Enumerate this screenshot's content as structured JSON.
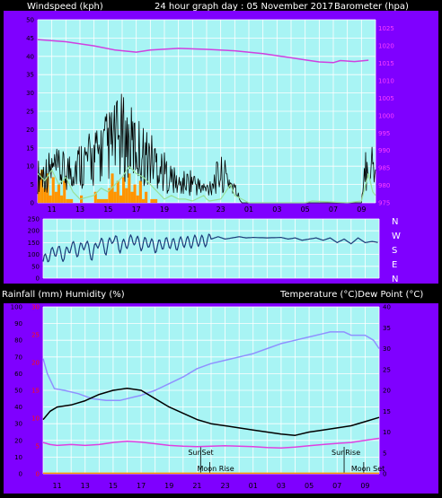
{
  "header": {
    "left": "Windspeed (kph)",
    "center": "24 hour graph day : 05 November 2017",
    "right": "Barometer (hpa)"
  },
  "middle_header": {
    "left": "Rainfall (mm)  Humidity (%)",
    "right": "Temperature (°C)Dew Point (°C)"
  },
  "colors": {
    "frame": "#7f00ff",
    "plot_bg": "#a8f4f4",
    "grid": "#ffffff",
    "axis_line": "#000000",
    "wind_avg": "#000000",
    "wind_gust": "#98e09a",
    "rain_bar": "#ff9400",
    "barometer": "#d040e0",
    "direction": "#1a3a78",
    "temperature": "#000000",
    "humidity": "#9090ff",
    "dewpoint": "#e040e0",
    "rain_cum": "#ff9900"
  },
  "chart_data": [
    {
      "id": "wind",
      "type": "line",
      "title": "24 hour graph day : 05 November 2017",
      "ylabel_left": "Windspeed (kph)",
      "ylabel_right": "Barometer (hpa)",
      "x_tick_labels": [
        "11",
        "13",
        "15",
        "17",
        "19",
        "21",
        "23",
        "01",
        "03",
        "05",
        "07",
        "09"
      ],
      "y_left_ticks": [
        "0",
        "5",
        "10",
        "15",
        "20",
        "25",
        "30",
        "35",
        "40",
        "45",
        "50"
      ],
      "y_left_range": [
        0,
        50
      ],
      "y_right_ticks": [
        "975",
        "980",
        "985",
        "990",
        "995",
        "1000",
        "1005",
        "1010",
        "1015",
        "1020",
        "1025"
      ],
      "y_right_range": [
        975,
        1027.5
      ],
      "grid": true,
      "series": [
        {
          "key": "barometer",
          "axis": "right",
          "points": [
            [
              0,
              1021.8
            ],
            [
              2,
              1021.2
            ],
            [
              4,
              1020.0
            ],
            [
              5.5,
              1018.8
            ],
            [
              7,
              1018.2
            ],
            [
              8,
              1018.8
            ],
            [
              10,
              1019.3
            ],
            [
              12,
              1019.0
            ],
            [
              14,
              1018.6
            ],
            [
              16,
              1017.8
            ],
            [
              18,
              1016.6
            ],
            [
              19,
              1016.0
            ],
            [
              20,
              1015.4
            ],
            [
              21,
              1015.2
            ],
            [
              21.5,
              1015.8
            ],
            [
              22.5,
              1015.5
            ],
            [
              23.5,
              1015.9
            ]
          ]
        },
        {
          "key": "wind_gust",
          "axis": "left",
          "points": [
            [
              0,
              8
            ],
            [
              0.5,
              6
            ],
            [
              1,
              9
            ],
            [
              1.5,
              5
            ],
            [
              2,
              7
            ],
            [
              2.5,
              3
            ],
            [
              3,
              1
            ],
            [
              4,
              2
            ],
            [
              4.5,
              4
            ],
            [
              5,
              3
            ],
            [
              5.5,
              5
            ],
            [
              6,
              7
            ],
            [
              6.5,
              10
            ],
            [
              7,
              8
            ],
            [
              7.5,
              7
            ],
            [
              8,
              5
            ],
            [
              8.5,
              3
            ],
            [
              9,
              1
            ],
            [
              9.5,
              2
            ],
            [
              10,
              1
            ],
            [
              10.5,
              1
            ],
            [
              11,
              0.5
            ],
            [
              11.8,
              2
            ],
            [
              12,
              1
            ],
            [
              12.2,
              0.5
            ],
            [
              13,
              1
            ],
            [
              13.7,
              5
            ],
            [
              14,
              2
            ],
            [
              14.5,
              1
            ],
            [
              15,
              0
            ],
            [
              19,
              0
            ],
            [
              19.5,
              0.5
            ],
            [
              22,
              0
            ],
            [
              23,
              0.5
            ],
            [
              23.5,
              8
            ],
            [
              23.8,
              3
            ],
            [
              24,
              2
            ]
          ]
        },
        {
          "key": "rain_bar",
          "axis": "left",
          "points": [
            [
              0,
              6
            ],
            [
              0.2,
              9
            ],
            [
              0.4,
              4
            ],
            [
              0.6,
              8
            ],
            [
              0.8,
              2
            ],
            [
              1,
              7
            ],
            [
              1.2,
              3
            ],
            [
              1.4,
              5
            ],
            [
              1.6,
              2
            ],
            [
              1.8,
              6
            ],
            [
              2,
              1
            ],
            [
              2.5,
              0
            ],
            [
              3,
              2
            ],
            [
              3.2,
              0
            ],
            [
              4,
              3
            ],
            [
              4.2,
              1
            ],
            [
              5,
              4
            ],
            [
              5.2,
              8
            ],
            [
              5.4,
              3
            ],
            [
              5.6,
              6
            ],
            [
              5.8,
              2
            ],
            [
              6,
              7
            ],
            [
              6.2,
              4
            ],
            [
              6.4,
              8
            ],
            [
              6.6,
              3
            ],
            [
              6.8,
              5
            ],
            [
              7,
              2
            ],
            [
              7.2,
              6
            ],
            [
              7.4,
              1
            ],
            [
              7.6,
              3
            ],
            [
              7.8,
              0
            ],
            [
              8,
              1
            ],
            [
              8.5,
              0
            ],
            [
              24,
              0
            ]
          ]
        }
      ]
    },
    {
      "id": "direction",
      "type": "line",
      "y_left_ticks": [
        "0",
        "50",
        "100",
        "150",
        "200",
        "250"
      ],
      "y_left_range": [
        0,
        250
      ],
      "y_right_labels": [
        "N",
        "W",
        "S",
        "E",
        "N"
      ],
      "grid": true,
      "series": [
        {
          "key": "direction",
          "axis": "left",
          "points": [
            [
              0,
              70
            ],
            [
              0.5,
              100
            ],
            [
              1,
              120
            ],
            [
              1.5,
              90
            ],
            [
              2,
              140
            ],
            [
              2.5,
              110
            ],
            [
              3,
              150
            ],
            [
              3.5,
              95
            ],
            [
              4,
              160
            ],
            [
              4.5,
              120
            ],
            [
              5,
              175
            ],
            [
              5.5,
              130
            ],
            [
              6,
              150
            ],
            [
              6.5,
              165
            ],
            [
              7,
              140
            ],
            [
              7.5,
              155
            ],
            [
              8,
              130
            ],
            [
              8.5,
              145
            ],
            [
              9,
              150
            ],
            [
              9.5,
              140
            ],
            [
              10,
              155
            ],
            [
              10.5,
              150
            ],
            [
              11,
              160
            ],
            [
              11.5,
              155
            ],
            [
              12,
              165
            ],
            [
              12.5,
              175
            ],
            [
              13,
              165
            ],
            [
              13.5,
              170
            ],
            [
              14,
              175
            ],
            [
              14.5,
              170
            ],
            [
              15,
              172
            ],
            [
              16,
              170
            ],
            [
              17,
              172
            ],
            [
              17.5,
              165
            ],
            [
              18,
              170
            ],
            [
              18.5,
              160
            ],
            [
              19,
              165
            ],
            [
              19.5,
              170
            ],
            [
              20,
              160
            ],
            [
              20.5,
              170
            ],
            [
              21,
              150
            ],
            [
              21.5,
              165
            ],
            [
              22,
              145
            ],
            [
              22.5,
              170
            ],
            [
              23,
              150
            ],
            [
              23.5,
              155
            ],
            [
              24,
              150
            ]
          ]
        }
      ]
    },
    {
      "id": "temperature",
      "type": "line",
      "ylabel_left": "Rainfall (mm)  Humidity (%)",
      "ylabel_right": "Temperature (°C)Dew Point (°C)",
      "x_tick_labels": [
        "11",
        "13",
        "15",
        "17",
        "19",
        "21",
        "23",
        "01",
        "03",
        "05",
        "07",
        "09"
      ],
      "y_left_ticks": [
        "0",
        "10",
        "20",
        "30",
        "40",
        "50",
        "60",
        "70",
        "80",
        "90",
        "100"
      ],
      "y_left_range": [
        0,
        100
      ],
      "y_rain_ticks": [
        "0",
        "5",
        "10",
        "15",
        "20",
        "25",
        "30"
      ],
      "y_rain_range": [
        0,
        30
      ],
      "y_right_ticks": [
        "0",
        "5",
        "10",
        "15",
        "20",
        "25",
        "30",
        "35",
        "40"
      ],
      "y_right_range": [
        0,
        40
      ],
      "grid": true,
      "annotations": [
        {
          "label": "SunSet",
          "x": 11.25,
          "row": "upper"
        },
        {
          "label": "Moon Rise",
          "x": 11.9,
          "row": "lower"
        },
        {
          "label": "SunRise",
          "x": 21.5,
          "row": "upper"
        },
        {
          "label": "Moon Set",
          "x": 22.9,
          "row": "lower"
        }
      ],
      "series": [
        {
          "key": "humidity",
          "axis": "left",
          "points": [
            [
              0,
              69
            ],
            [
              0.3,
              60
            ],
            [
              0.8,
              51
            ],
            [
              1.5,
              50
            ],
            [
              2.5,
              48
            ],
            [
              3.5,
              45
            ],
            [
              4.5,
              44
            ],
            [
              5.5,
              44
            ],
            [
              6,
              45
            ],
            [
              6.5,
              46
            ],
            [
              7,
              47
            ],
            [
              8,
              50
            ],
            [
              9,
              54
            ],
            [
              10,
              58
            ],
            [
              11,
              63
            ],
            [
              12,
              66
            ],
            [
              13,
              68
            ],
            [
              14,
              70
            ],
            [
              15,
              72
            ],
            [
              16,
              75
            ],
            [
              17,
              78
            ],
            [
              18,
              80
            ],
            [
              19,
              82
            ],
            [
              20,
              84
            ],
            [
              20.5,
              85
            ],
            [
              21.5,
              85
            ],
            [
              22,
              83
            ],
            [
              23,
              83
            ],
            [
              23.6,
              80
            ],
            [
              24,
              75
            ]
          ]
        },
        {
          "key": "temperature",
          "axis": "right",
          "points": [
            [
              0,
              13
            ],
            [
              0.5,
              15
            ],
            [
              1,
              16
            ],
            [
              2,
              16.5
            ],
            [
              3,
              17.5
            ],
            [
              4,
              19
            ],
            [
              5,
              20
            ],
            [
              6,
              20.5
            ],
            [
              7,
              20
            ],
            [
              8,
              18
            ],
            [
              9,
              16
            ],
            [
              10,
              14.5
            ],
            [
              11,
              13
            ],
            [
              12,
              12
            ],
            [
              13,
              11.5
            ],
            [
              14,
              11
            ],
            [
              15,
              10.5
            ],
            [
              16,
              10
            ],
            [
              17,
              9.5
            ],
            [
              18,
              9.2
            ],
            [
              19,
              10
            ],
            [
              20,
              10.5
            ],
            [
              21,
              11
            ],
            [
              22,
              11.5
            ],
            [
              23,
              12.5
            ],
            [
              24,
              13.5
            ]
          ]
        },
        {
          "key": "dewpoint",
          "axis": "right",
          "points": [
            [
              0,
              7.5
            ],
            [
              0.5,
              7
            ],
            [
              1,
              6.8
            ],
            [
              2,
              7
            ],
            [
              3,
              6.8
            ],
            [
              4,
              7
            ],
            [
              5,
              7.5
            ],
            [
              6,
              7.8
            ],
            [
              7,
              7.6
            ],
            [
              8,
              7.2
            ],
            [
              9,
              6.8
            ],
            [
              10,
              6.6
            ],
            [
              11,
              6.5
            ],
            [
              12,
              6.6
            ],
            [
              13,
              6.7
            ],
            [
              14,
              6.6
            ],
            [
              15,
              6.5
            ],
            [
              16,
              6.3
            ],
            [
              17,
              6.2
            ],
            [
              18,
              6.4
            ],
            [
              19,
              6.7
            ],
            [
              20,
              7
            ],
            [
              21,
              7.3
            ],
            [
              22,
              7.5
            ],
            [
              23,
              8
            ],
            [
              24,
              8.5
            ]
          ]
        },
        {
          "key": "rain_cum",
          "axis": "left",
          "points": [
            [
              0,
              0.3
            ],
            [
              24,
              0.3
            ]
          ]
        }
      ]
    }
  ]
}
